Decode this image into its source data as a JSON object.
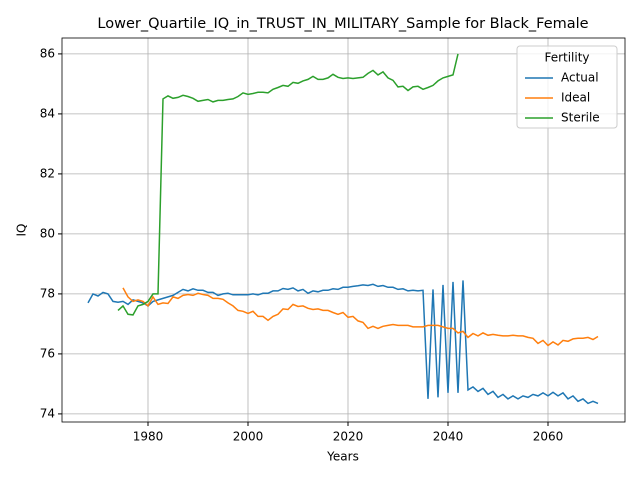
{
  "chart_data": {
    "type": "line",
    "title": "Lower_Quartile_IQ_in_TRUST_IN_MILITARY_Sample for Black_Female",
    "x_label": "Years",
    "y_label": "IQ",
    "legend_title": "Fertility",
    "legend": "upper right",
    "grid": true,
    "xlim": [
      1962.8,
      2075.4
    ],
    "ylim": [
      73.73,
      86.53
    ],
    "xticks": [
      1980,
      2000,
      2020,
      2040,
      2060
    ],
    "yticks": [
      74,
      76,
      78,
      80,
      82,
      84,
      86
    ],
    "x": [
      1968,
      1969,
      1970,
      1971,
      1972,
      1973,
      1974,
      1975,
      1976,
      1977,
      1978,
      1979,
      1980,
      1981,
      1982,
      1983,
      1984,
      1985,
      1986,
      1987,
      1988,
      1989,
      1990,
      1991,
      1992,
      1993,
      1994,
      1995,
      1996,
      1997,
      1998,
      1999,
      2000,
      2001,
      2002,
      2003,
      2004,
      2005,
      2006,
      2007,
      2008,
      2009,
      2010,
      2011,
      2012,
      2013,
      2014,
      2015,
      2016,
      2017,
      2018,
      2019,
      2020,
      2021,
      2022,
      2023,
      2024,
      2025,
      2026,
      2027,
      2028,
      2029,
      2030,
      2031,
      2032,
      2033,
      2034,
      2035,
      2036,
      2037,
      2038,
      2039,
      2040,
      2041,
      2042,
      2043,
      2044,
      2045,
      2046,
      2047,
      2048,
      2049,
      2050,
      2051,
      2052,
      2053,
      2054,
      2055,
      2056,
      2057,
      2058,
      2059,
      2060,
      2061,
      2062,
      2063,
      2064,
      2065,
      2066,
      2067,
      2068,
      2069,
      2070
    ],
    "series": [
      {
        "name": "Actual",
        "color": "#1f77b4",
        "values": [
          77.7,
          78.0,
          77.93,
          78.05,
          78.0,
          77.75,
          77.72,
          77.75,
          77.65,
          77.8,
          77.75,
          77.7,
          77.6,
          77.75,
          77.8,
          77.85,
          77.9,
          77.95,
          78.05,
          78.15,
          78.1,
          78.17,
          78.12,
          78.12,
          78.05,
          78.05,
          77.95,
          78.0,
          78.02,
          77.97,
          77.97,
          77.97,
          77.97,
          78.0,
          77.97,
          78.02,
          78.02,
          78.1,
          78.1,
          78.18,
          78.15,
          78.2,
          78.1,
          78.15,
          78.02,
          78.1,
          78.07,
          78.12,
          78.12,
          78.17,
          78.15,
          78.22,
          78.22,
          78.25,
          78.27,
          78.3,
          78.28,
          78.32,
          78.25,
          78.28,
          78.22,
          78.22,
          78.15,
          78.17,
          78.1,
          78.12,
          78.1,
          78.12,
          74.5,
          78.15,
          74.55,
          78.3,
          74.7,
          78.4,
          74.7,
          78.45,
          74.8,
          74.9,
          74.75,
          74.85,
          74.65,
          74.75,
          74.55,
          74.65,
          74.5,
          74.6,
          74.5,
          74.6,
          74.55,
          74.65,
          74.6,
          74.7,
          74.6,
          74.72,
          74.6,
          74.7,
          74.5,
          74.6,
          74.42,
          74.5,
          74.35,
          74.42,
          74.35
        ]
      },
      {
        "name": "Ideal",
        "color": "#ff7f0e",
        "values": [
          null,
          null,
          null,
          null,
          null,
          null,
          null,
          78.2,
          77.9,
          77.75,
          77.8,
          77.75,
          77.6,
          77.9,
          77.65,
          77.7,
          77.68,
          77.9,
          77.85,
          77.95,
          77.98,
          77.95,
          78.02,
          77.98,
          77.95,
          77.85,
          77.85,
          77.82,
          77.7,
          77.6,
          77.45,
          77.42,
          77.35,
          77.42,
          77.25,
          77.25,
          77.12,
          77.25,
          77.32,
          77.5,
          77.48,
          77.65,
          77.58,
          77.6,
          77.52,
          77.48,
          77.5,
          77.45,
          77.45,
          77.38,
          77.32,
          77.38,
          77.22,
          77.25,
          77.1,
          77.05,
          76.85,
          76.92,
          76.85,
          76.92,
          76.95,
          76.98,
          76.95,
          76.95,
          76.95,
          76.9,
          76.9,
          76.9,
          76.95,
          76.95,
          76.95,
          76.9,
          76.85,
          76.85,
          76.7,
          76.75,
          76.55,
          76.68,
          76.6,
          76.7,
          76.62,
          76.65,
          76.62,
          76.6,
          76.6,
          76.62,
          76.6,
          76.6,
          76.55,
          76.52,
          76.35,
          76.45,
          76.28,
          76.4,
          76.3,
          76.45,
          76.42,
          76.5,
          76.52,
          76.52,
          76.55,
          76.48,
          76.58
        ]
      },
      {
        "name": "Sterile",
        "color": "#2ca02c",
        "values": [
          null,
          null,
          null,
          null,
          null,
          null,
          77.45,
          77.6,
          77.32,
          77.3,
          77.6,
          77.65,
          77.75,
          78.0,
          78.0,
          84.5,
          84.6,
          84.52,
          84.55,
          84.62,
          84.58,
          84.52,
          84.42,
          84.45,
          84.48,
          84.4,
          84.45,
          84.45,
          84.48,
          84.5,
          84.58,
          84.7,
          84.65,
          84.68,
          84.72,
          84.72,
          84.7,
          84.82,
          84.88,
          84.95,
          84.92,
          85.05,
          85.02,
          85.1,
          85.15,
          85.25,
          85.15,
          85.15,
          85.2,
          85.32,
          85.22,
          85.18,
          85.2,
          85.18,
          85.2,
          85.22,
          85.35,
          85.45,
          85.3,
          85.4,
          85.2,
          85.12,
          84.9,
          84.92,
          84.78,
          84.9,
          84.92,
          84.82,
          84.88,
          84.95,
          85.1,
          85.2,
          85.25,
          85.3,
          86.0,
          null,
          null,
          null,
          null,
          null,
          null,
          null,
          null,
          null,
          null,
          null,
          null,
          null,
          null,
          null,
          null,
          null,
          null,
          null,
          null,
          null,
          null,
          null,
          null,
          null,
          null,
          null,
          null
        ]
      }
    ]
  }
}
